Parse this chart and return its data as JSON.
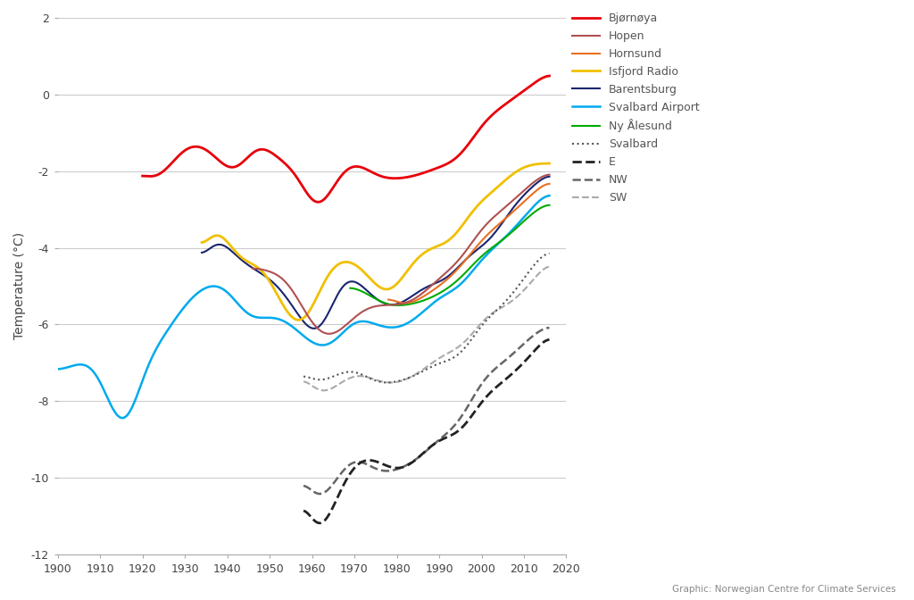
{
  "ylabel": "Temperature (°C)",
  "xlim": [
    1900,
    2020
  ],
  "ylim": [
    -12,
    2
  ],
  "yticks": [
    -12,
    -10,
    -8,
    -6,
    -4,
    -2,
    0,
    2
  ],
  "xticks": [
    1900,
    1910,
    1920,
    1930,
    1940,
    1950,
    1960,
    1970,
    1980,
    1990,
    2000,
    2010,
    2020
  ],
  "background_color": "#ffffff",
  "grid_color": "#cccccc",
  "series": {
    "Bjørnøya": {
      "color": "#e8000a",
      "lw": 2.0,
      "ls": "-"
    },
    "Hopen": {
      "color": "#b05050",
      "lw": 1.5,
      "ls": "-"
    },
    "Hornsund": {
      "color": "#e87020",
      "lw": 1.5,
      "ls": "-"
    },
    "Isfjord Radio": {
      "color": "#f0c000",
      "lw": 2.0,
      "ls": "-"
    },
    "Barentsburg": {
      "color": "#1a2570",
      "lw": 1.5,
      "ls": "-"
    },
    "Svalbard Airport": {
      "color": "#00aaee",
      "lw": 1.8,
      "ls": "-"
    },
    "Ny Ålesund": {
      "color": "#00aa00",
      "lw": 1.5,
      "ls": "-"
    },
    "Svalbard": {
      "color": "#555555",
      "lw": 1.5,
      "ls": ":"
    },
    "E": {
      "color": "#222222",
      "lw": 2.0,
      "ls": "--"
    },
    "NW": {
      "color": "#666666",
      "lw": 1.8,
      "ls": "--"
    },
    "SW": {
      "color": "#aaaaaa",
      "lw": 1.5,
      "ls": "--"
    }
  },
  "footer": "Graphic: Norwegian Centre for Climate Services",
  "Bjornoya_x": [
    1920,
    1925,
    1930,
    1933,
    1937,
    1942,
    1947,
    1952,
    1957,
    1961,
    1966,
    1970,
    1975,
    1980,
    1985,
    1990,
    1995,
    2000,
    2005,
    2010,
    2016
  ],
  "Bjornoya_y": [
    -2.0,
    -2.05,
    -1.4,
    -1.3,
    -1.6,
    -2.0,
    -1.35,
    -1.65,
    -2.2,
    -3.0,
    -2.2,
    -1.8,
    -2.1,
    -2.2,
    -2.1,
    -1.9,
    -1.6,
    -0.8,
    -0.3,
    0.1,
    0.6
  ],
  "Hopen_x": [
    1946,
    1950,
    1955,
    1960,
    1965,
    1970,
    1975,
    1980,
    1985,
    1990,
    1995,
    2000,
    2005,
    2010,
    2016
  ],
  "Hopen_y": [
    -4.5,
    -4.6,
    -5.0,
    -6.0,
    -6.3,
    -5.8,
    -5.5,
    -5.5,
    -5.3,
    -4.8,
    -4.3,
    -3.5,
    -3.0,
    -2.5,
    -2.0
  ],
  "Hornsund_x": [
    1978,
    1982,
    1986,
    1990,
    1995,
    2000,
    2005,
    2010,
    2016
  ],
  "Hornsund_y": [
    -5.2,
    -5.5,
    -5.3,
    -5.0,
    -4.5,
    -3.8,
    -3.3,
    -2.8,
    -2.2
  ],
  "Isfjord_x": [
    1934,
    1937,
    1940,
    1943,
    1948,
    1953,
    1958,
    1963,
    1968,
    1973,
    1978,
    1983,
    1988,
    1993,
    1998,
    2003,
    2008,
    2013,
    2016
  ],
  "Isfjord_y": [
    -4.3,
    -3.5,
    -3.8,
    -4.3,
    -4.5,
    -5.5,
    -6.0,
    -4.8,
    -4.3,
    -4.7,
    -5.2,
    -4.5,
    -4.0,
    -3.8,
    -3.0,
    -2.5,
    -2.0,
    -1.8,
    -1.8
  ],
  "Barentsburg_x": [
    1934,
    1937,
    1942,
    1947,
    1952,
    1957,
    1962,
    1967,
    1972,
    1977,
    1982,
    1987,
    1992,
    1997,
    2002,
    2007,
    2012,
    2016
  ],
  "Barentsburg_y": [
    -4.5,
    -3.8,
    -4.2,
    -4.6,
    -5.0,
    -5.8,
    -6.2,
    -4.9,
    -5.0,
    -5.5,
    -5.4,
    -5.0,
    -4.8,
    -4.2,
    -3.8,
    -3.0,
    -2.4,
    -2.0
  ],
  "SvalbardAirport_x": [
    1900,
    1905,
    1910,
    1915,
    1917,
    1920,
    1925,
    1930,
    1935,
    1940,
    1945,
    1950,
    1955,
    1960,
    1965,
    1970,
    1975,
    1980,
    1985,
    1990,
    1995,
    2000,
    2005,
    2010,
    2016
  ],
  "SvalbardAirport_y": [
    -7.2,
    -7.0,
    -7.4,
    -8.7,
    -8.5,
    -7.4,
    -6.3,
    -5.5,
    -5.0,
    -5.1,
    -5.8,
    -5.8,
    -6.0,
    -6.5,
    -6.5,
    -5.9,
    -6.0,
    -6.1,
    -5.8,
    -5.3,
    -5.0,
    -4.3,
    -3.8,
    -3.2,
    -2.5
  ],
  "NyAalesund_x": [
    1969,
    1973,
    1978,
    1982,
    1986,
    1990,
    1995,
    2000,
    2005,
    2010,
    2016
  ],
  "NyAalesund_y": [
    -5.0,
    -5.2,
    -5.5,
    -5.5,
    -5.4,
    -5.2,
    -4.8,
    -4.2,
    -3.8,
    -3.3,
    -2.8
  ],
  "Svalbard_region_x": [
    1958,
    1962,
    1966,
    1970,
    1975,
    1980,
    1985,
    1990,
    1995,
    2000,
    2005,
    2010,
    2016
  ],
  "Svalbard_region_y": [
    -7.2,
    -7.5,
    -7.3,
    -7.2,
    -7.5,
    -7.5,
    -7.3,
    -7.0,
    -6.8,
    -6.0,
    -5.5,
    -4.8,
    -4.0
  ],
  "E_x": [
    1958,
    1963,
    1966,
    1968,
    1972,
    1976,
    1980,
    1985,
    1990,
    1995,
    2000,
    2005,
    2010,
    2016
  ],
  "E_y": [
    -10.2,
    -11.3,
    -10.5,
    -10.0,
    -9.5,
    -9.6,
    -9.8,
    -9.5,
    -9.0,
    -8.8,
    -8.0,
    -7.5,
    -7.0,
    -6.2
  ],
  "NW_x": [
    1958,
    1963,
    1966,
    1970,
    1975,
    1980,
    1985,
    1990,
    1995,
    2000,
    2005,
    2010,
    2016
  ],
  "NW_y": [
    -9.8,
    -10.5,
    -10.0,
    -9.5,
    -9.8,
    -9.8,
    -9.5,
    -9.0,
    -8.5,
    -7.5,
    -7.0,
    -6.5,
    -6.0
  ],
  "SW_x": [
    1958,
    1963,
    1967,
    1971,
    1976,
    1981,
    1986,
    1991,
    1996,
    2001,
    2006,
    2011,
    2016
  ],
  "SW_y": [
    -7.2,
    -7.8,
    -7.5,
    -7.3,
    -7.5,
    -7.5,
    -7.2,
    -6.8,
    -6.5,
    -5.8,
    -5.5,
    -5.0,
    -4.3
  ]
}
